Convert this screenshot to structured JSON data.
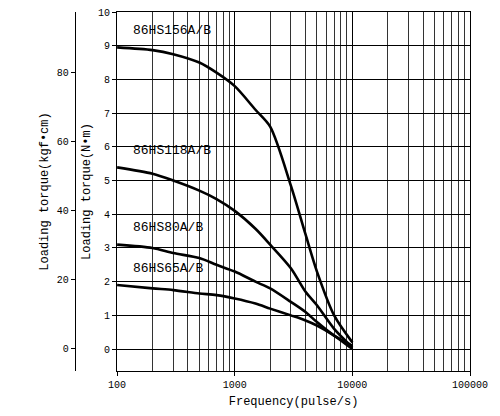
{
  "chart_data": {
    "type": "line",
    "x_label": "Frequency(pulse/s)",
    "y_label": "Loading torque(N•m)",
    "y2_label": "Loading torque(kgf•cm)",
    "x": [
      100,
      200,
      300,
      500,
      700,
      1000,
      1500,
      2000,
      3000,
      4000,
      5000,
      7000,
      10000
    ],
    "series": [
      {
        "name": "86HS156A/B",
        "color": "#000000",
        "line_style": "solid",
        "values": [
          8.95,
          8.87,
          8.75,
          8.5,
          8.2,
          7.8,
          7.1,
          6.6,
          4.85,
          3.4,
          2.3,
          1.0,
          0.2
        ]
      },
      {
        "name": "86HS118A/B",
        "color": "#000000",
        "line_style": "solid",
        "values": [
          5.39,
          5.2,
          5.0,
          4.7,
          4.45,
          4.1,
          3.57,
          3.1,
          2.4,
          1.7,
          1.3,
          0.6,
          0.05
        ]
      },
      {
        "name": "86HS80A/B",
        "color": "#000000",
        "line_style": "solid",
        "values": [
          3.1,
          3.0,
          2.85,
          2.7,
          2.5,
          2.3,
          2.0,
          1.8,
          1.4,
          1.1,
          0.8,
          0.4,
          0.1
        ]
      },
      {
        "name": "86HS65A/B",
        "color": "#000000",
        "line_style": "solid",
        "values": [
          1.9,
          1.8,
          1.75,
          1.65,
          1.6,
          1.5,
          1.35,
          1.2,
          1.0,
          0.85,
          0.7,
          0.4,
          0.0
        ]
      }
    ],
    "xlim": [
      100,
      100000
    ],
    "xticks": [
      100,
      1000,
      10000,
      100000
    ],
    "ylim": [
      -0.65,
      10
    ],
    "yticks": [
      0,
      1,
      2,
      3,
      4,
      5,
      6,
      7,
      8,
      9,
      10
    ],
    "y2lim": [
      -6.4,
      97.4
    ],
    "y2ticks": [
      0,
      20,
      40,
      60,
      80
    ],
    "log": "x",
    "grid": true
  }
}
